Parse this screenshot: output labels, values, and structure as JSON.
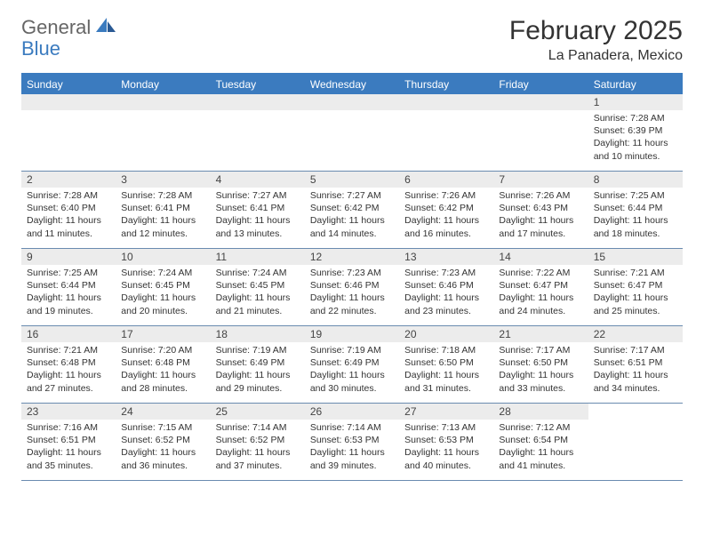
{
  "logo": {
    "text1": "General",
    "text2": "Blue"
  },
  "title": "February 2025",
  "location": "La Panadera, Mexico",
  "weekdays": [
    "Sunday",
    "Monday",
    "Tuesday",
    "Wednesday",
    "Thursday",
    "Friday",
    "Saturday"
  ],
  "colors": {
    "header_bar": "#3b7bbf",
    "daynum_bg": "#ececec",
    "week_border": "#6a8bb0",
    "text": "#333333",
    "logo_gray": "#666666",
    "logo_blue": "#3b7bbf"
  },
  "weeks": [
    [
      {
        "blank": true
      },
      {
        "blank": true
      },
      {
        "blank": true
      },
      {
        "blank": true
      },
      {
        "blank": true
      },
      {
        "blank": true
      },
      {
        "num": "1",
        "sunrise": "Sunrise: 7:28 AM",
        "sunset": "Sunset: 6:39 PM",
        "day1": "Daylight: 11 hours",
        "day2": "and 10 minutes."
      }
    ],
    [
      {
        "num": "2",
        "sunrise": "Sunrise: 7:28 AM",
        "sunset": "Sunset: 6:40 PM",
        "day1": "Daylight: 11 hours",
        "day2": "and 11 minutes."
      },
      {
        "num": "3",
        "sunrise": "Sunrise: 7:28 AM",
        "sunset": "Sunset: 6:41 PM",
        "day1": "Daylight: 11 hours",
        "day2": "and 12 minutes."
      },
      {
        "num": "4",
        "sunrise": "Sunrise: 7:27 AM",
        "sunset": "Sunset: 6:41 PM",
        "day1": "Daylight: 11 hours",
        "day2": "and 13 minutes."
      },
      {
        "num": "5",
        "sunrise": "Sunrise: 7:27 AM",
        "sunset": "Sunset: 6:42 PM",
        "day1": "Daylight: 11 hours",
        "day2": "and 14 minutes."
      },
      {
        "num": "6",
        "sunrise": "Sunrise: 7:26 AM",
        "sunset": "Sunset: 6:42 PM",
        "day1": "Daylight: 11 hours",
        "day2": "and 16 minutes."
      },
      {
        "num": "7",
        "sunrise": "Sunrise: 7:26 AM",
        "sunset": "Sunset: 6:43 PM",
        "day1": "Daylight: 11 hours",
        "day2": "and 17 minutes."
      },
      {
        "num": "8",
        "sunrise": "Sunrise: 7:25 AM",
        "sunset": "Sunset: 6:44 PM",
        "day1": "Daylight: 11 hours",
        "day2": "and 18 minutes."
      }
    ],
    [
      {
        "num": "9",
        "sunrise": "Sunrise: 7:25 AM",
        "sunset": "Sunset: 6:44 PM",
        "day1": "Daylight: 11 hours",
        "day2": "and 19 minutes."
      },
      {
        "num": "10",
        "sunrise": "Sunrise: 7:24 AM",
        "sunset": "Sunset: 6:45 PM",
        "day1": "Daylight: 11 hours",
        "day2": "and 20 minutes."
      },
      {
        "num": "11",
        "sunrise": "Sunrise: 7:24 AM",
        "sunset": "Sunset: 6:45 PM",
        "day1": "Daylight: 11 hours",
        "day2": "and 21 minutes."
      },
      {
        "num": "12",
        "sunrise": "Sunrise: 7:23 AM",
        "sunset": "Sunset: 6:46 PM",
        "day1": "Daylight: 11 hours",
        "day2": "and 22 minutes."
      },
      {
        "num": "13",
        "sunrise": "Sunrise: 7:23 AM",
        "sunset": "Sunset: 6:46 PM",
        "day1": "Daylight: 11 hours",
        "day2": "and 23 minutes."
      },
      {
        "num": "14",
        "sunrise": "Sunrise: 7:22 AM",
        "sunset": "Sunset: 6:47 PM",
        "day1": "Daylight: 11 hours",
        "day2": "and 24 minutes."
      },
      {
        "num": "15",
        "sunrise": "Sunrise: 7:21 AM",
        "sunset": "Sunset: 6:47 PM",
        "day1": "Daylight: 11 hours",
        "day2": "and 25 minutes."
      }
    ],
    [
      {
        "num": "16",
        "sunrise": "Sunrise: 7:21 AM",
        "sunset": "Sunset: 6:48 PM",
        "day1": "Daylight: 11 hours",
        "day2": "and 27 minutes."
      },
      {
        "num": "17",
        "sunrise": "Sunrise: 7:20 AM",
        "sunset": "Sunset: 6:48 PM",
        "day1": "Daylight: 11 hours",
        "day2": "and 28 minutes."
      },
      {
        "num": "18",
        "sunrise": "Sunrise: 7:19 AM",
        "sunset": "Sunset: 6:49 PM",
        "day1": "Daylight: 11 hours",
        "day2": "and 29 minutes."
      },
      {
        "num": "19",
        "sunrise": "Sunrise: 7:19 AM",
        "sunset": "Sunset: 6:49 PM",
        "day1": "Daylight: 11 hours",
        "day2": "and 30 minutes."
      },
      {
        "num": "20",
        "sunrise": "Sunrise: 7:18 AM",
        "sunset": "Sunset: 6:50 PM",
        "day1": "Daylight: 11 hours",
        "day2": "and 31 minutes."
      },
      {
        "num": "21",
        "sunrise": "Sunrise: 7:17 AM",
        "sunset": "Sunset: 6:50 PM",
        "day1": "Daylight: 11 hours",
        "day2": "and 33 minutes."
      },
      {
        "num": "22",
        "sunrise": "Sunrise: 7:17 AM",
        "sunset": "Sunset: 6:51 PM",
        "day1": "Daylight: 11 hours",
        "day2": "and 34 minutes."
      }
    ],
    [
      {
        "num": "23",
        "sunrise": "Sunrise: 7:16 AM",
        "sunset": "Sunset: 6:51 PM",
        "day1": "Daylight: 11 hours",
        "day2": "and 35 minutes."
      },
      {
        "num": "24",
        "sunrise": "Sunrise: 7:15 AM",
        "sunset": "Sunset: 6:52 PM",
        "day1": "Daylight: 11 hours",
        "day2": "and 36 minutes."
      },
      {
        "num": "25",
        "sunrise": "Sunrise: 7:14 AM",
        "sunset": "Sunset: 6:52 PM",
        "day1": "Daylight: 11 hours",
        "day2": "and 37 minutes."
      },
      {
        "num": "26",
        "sunrise": "Sunrise: 7:14 AM",
        "sunset": "Sunset: 6:53 PM",
        "day1": "Daylight: 11 hours",
        "day2": "and 39 minutes."
      },
      {
        "num": "27",
        "sunrise": "Sunrise: 7:13 AM",
        "sunset": "Sunset: 6:53 PM",
        "day1": "Daylight: 11 hours",
        "day2": "and 40 minutes."
      },
      {
        "num": "28",
        "sunrise": "Sunrise: 7:12 AM",
        "sunset": "Sunset: 6:54 PM",
        "day1": "Daylight: 11 hours",
        "day2": "and 41 minutes."
      },
      {
        "blank": true,
        "nobar": true
      }
    ]
  ]
}
